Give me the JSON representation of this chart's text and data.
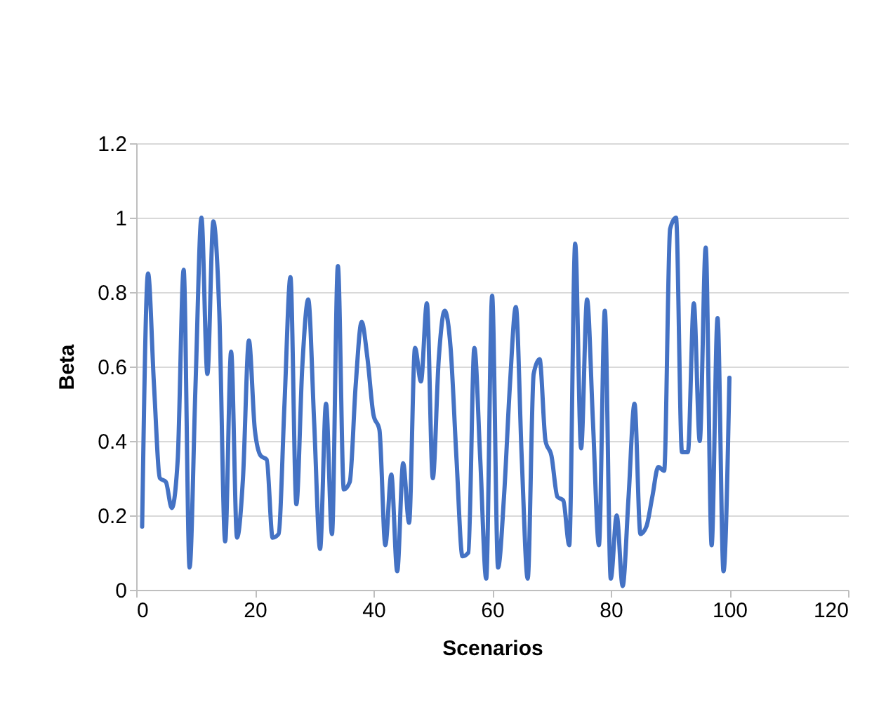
{
  "chart_data": {
    "type": "line",
    "xlabel": "Scenarios",
    "ylabel": "Beta",
    "x": [
      1,
      2,
      3,
      4,
      5,
      6,
      7,
      8,
      9,
      10,
      11,
      12,
      13,
      14,
      15,
      16,
      17,
      18,
      19,
      20,
      21,
      22,
      23,
      24,
      25,
      26,
      27,
      28,
      29,
      30,
      31,
      32,
      33,
      34,
      35,
      36,
      37,
      38,
      39,
      40,
      41,
      42,
      43,
      44,
      45,
      46,
      47,
      48,
      49,
      50,
      51,
      52,
      53,
      54,
      55,
      56,
      57,
      58,
      59,
      60,
      61,
      62,
      63,
      64,
      65,
      66,
      67,
      68,
      69,
      70,
      71,
      72,
      73,
      74,
      75,
      76,
      77,
      78,
      79,
      80,
      81,
      82,
      83,
      84,
      85,
      86,
      87,
      88,
      89,
      90,
      91,
      92,
      93,
      94,
      95,
      96,
      97,
      98,
      99,
      100
    ],
    "series": [
      {
        "color": "#4472c4",
        "values": [
          0.17,
          0.85,
          0.55,
          0.3,
          0.29,
          0.22,
          0.35,
          0.86,
          0.06,
          0.55,
          1.0,
          0.58,
          0.99,
          0.75,
          0.13,
          0.64,
          0.14,
          0.3,
          0.67,
          0.43,
          0.36,
          0.35,
          0.14,
          0.15,
          0.5,
          0.84,
          0.23,
          0.6,
          0.78,
          0.45,
          0.11,
          0.5,
          0.15,
          0.87,
          0.27,
          0.29,
          0.55,
          0.72,
          0.62,
          0.47,
          0.43,
          0.12,
          0.31,
          0.05,
          0.34,
          0.18,
          0.65,
          0.56,
          0.77,
          0.3,
          0.62,
          0.75,
          0.65,
          0.35,
          0.09,
          0.1,
          0.65,
          0.35,
          0.03,
          0.79,
          0.06,
          0.25,
          0.55,
          0.76,
          0.35,
          0.03,
          0.58,
          0.62,
          0.4,
          0.36,
          0.25,
          0.24,
          0.12,
          0.93,
          0.38,
          0.78,
          0.45,
          0.12,
          0.75,
          0.03,
          0.2,
          0.01,
          0.25,
          0.5,
          0.15,
          0.17,
          0.25,
          0.33,
          0.32,
          0.97,
          1.0,
          0.37,
          0.37,
          0.77,
          0.4,
          0.92,
          0.12,
          0.73,
          0.05,
          0.57
        ]
      }
    ],
    "xlim": [
      0,
      120
    ],
    "xticks": [
      0,
      20,
      40,
      60,
      80,
      100,
      120
    ],
    "ylim": [
      0,
      1.2
    ],
    "yticks": [
      0,
      0.2,
      0.4,
      0.6,
      0.8,
      1,
      1.2
    ],
    "grid": "y",
    "marker": "none",
    "line_style": "solid"
  }
}
